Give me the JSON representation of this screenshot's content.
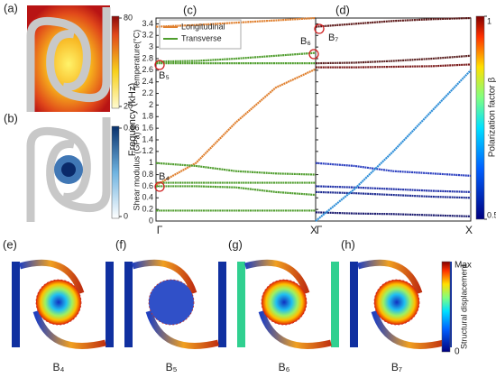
{
  "panels": {
    "a": {
      "label": "(a)",
      "colorbar_label": "Temperature(°C)",
      "cticks": [
        20,
        80
      ]
    },
    "b": {
      "label": "(b)",
      "colorbar_label": "Shear modulus (GPa)",
      "cticks": [
        0,
        0.86
      ]
    },
    "e": {
      "label": "(e)",
      "caption": "B₄"
    },
    "f": {
      "label": "(f)",
      "caption": "B₅"
    },
    "g": {
      "label": "(g)",
      "caption": "B₆"
    },
    "h": {
      "label": "(h)",
      "caption": "B₇"
    },
    "displacement_colorbar": {
      "label": "Structural displacement",
      "top": "Max",
      "bottom": "0"
    }
  },
  "chart_data": [
    {
      "type": "line",
      "panel_label": "(c)",
      "y_label": "Frequency (kHz)",
      "x": [
        0,
        0.25,
        0.5,
        0.75,
        1
      ],
      "xlim": [
        0,
        1
      ],
      "xticks": [
        {
          "value": 0,
          "label": "Γ"
        },
        {
          "value": 1,
          "label": "X"
        }
      ],
      "ylim": [
        0,
        3.5
      ],
      "yticks": [
        0,
        0.2,
        0.4,
        0.6,
        0.8,
        1,
        1.2,
        1.4,
        1.6,
        1.8,
        2,
        2.2,
        2.4,
        2.6,
        2.8,
        3,
        3.2,
        3.4
      ],
      "series": [
        {
          "name": "Longitudinal",
          "color": "#e0802f",
          "values": [
            0.62,
            1.0,
            1.7,
            2.3,
            2.62
          ]
        },
        {
          "name": "Transverse",
          "color": "#4f9d2d",
          "values": [
            0.18,
            0.18,
            0.18,
            0.18,
            0.18
          ]
        },
        {
          "color": "#4f9d2d",
          "values": [
            0.6,
            0.6,
            0.58,
            0.5,
            0.45
          ]
        },
        {
          "color": "#4f9d2d",
          "values": [
            0.66,
            0.66,
            0.66,
            0.66,
            0.66
          ]
        },
        {
          "color": "#4f9d2d",
          "values": [
            1.0,
            0.95,
            0.86,
            0.82,
            0.8
          ]
        },
        {
          "color": "#4f9d2d",
          "values": [
            2.72,
            2.72,
            2.72,
            2.72,
            2.72
          ]
        },
        {
          "color": "#4f9d2d",
          "values": [
            2.75,
            2.76,
            2.8,
            2.85,
            2.9
          ]
        },
        {
          "color": "#e0802f",
          "values": [
            3.35,
            3.38,
            3.42,
            3.46,
            3.5
          ]
        }
      ],
      "annotations": [
        "B₄",
        "B₅",
        "B₆"
      ]
    },
    {
      "type": "line",
      "panel_label": "(d)",
      "x": [
        0,
        0.25,
        0.5,
        0.75,
        1
      ],
      "xlim": [
        0,
        1
      ],
      "xticks": [
        {
          "value": 0,
          "label": "Γ"
        },
        {
          "value": 1,
          "label": "X"
        }
      ],
      "ylim": [
        0,
        3.5
      ],
      "yticks": [
        0,
        0.2,
        0.4,
        0.6,
        0.8,
        1,
        1.2,
        1.4,
        1.6,
        1.8,
        2,
        2.2,
        2.4,
        2.6,
        2.8,
        3,
        3.2,
        3.4
      ],
      "series": [
        {
          "color": "#1a1a6e",
          "values": [
            0.15,
            0.13,
            0.12,
            0.1,
            0.08
          ]
        },
        {
          "color": "#1c2a90",
          "values": [
            0.5,
            0.48,
            0.45,
            0.42,
            0.4
          ]
        },
        {
          "color": "#2030a8",
          "values": [
            0.6,
            0.58,
            0.55,
            0.52,
            0.5
          ]
        },
        {
          "color": "#2b3fc0",
          "values": [
            1.0,
            0.95,
            0.86,
            0.82,
            0.78
          ]
        },
        {
          "color": "#2f8fd8",
          "values": [
            0,
            0.55,
            1.2,
            1.9,
            2.6
          ]
        },
        {
          "color": "#7a1a1a",
          "values": [
            2.65,
            2.65,
            2.66,
            2.67,
            2.7
          ]
        },
        {
          "color": "#5a2020",
          "values": [
            2.72,
            2.73,
            2.76,
            2.8,
            2.85
          ]
        },
        {
          "color": "#5a1515",
          "values": [
            3.35,
            3.4,
            3.45,
            3.48,
            3.5
          ]
        }
      ],
      "annotations": [
        "B₇"
      ],
      "colorbar_label": "Polarization factor β",
      "clim": [
        0.5,
        1
      ],
      "cticks": [
        0.5,
        1
      ]
    }
  ]
}
